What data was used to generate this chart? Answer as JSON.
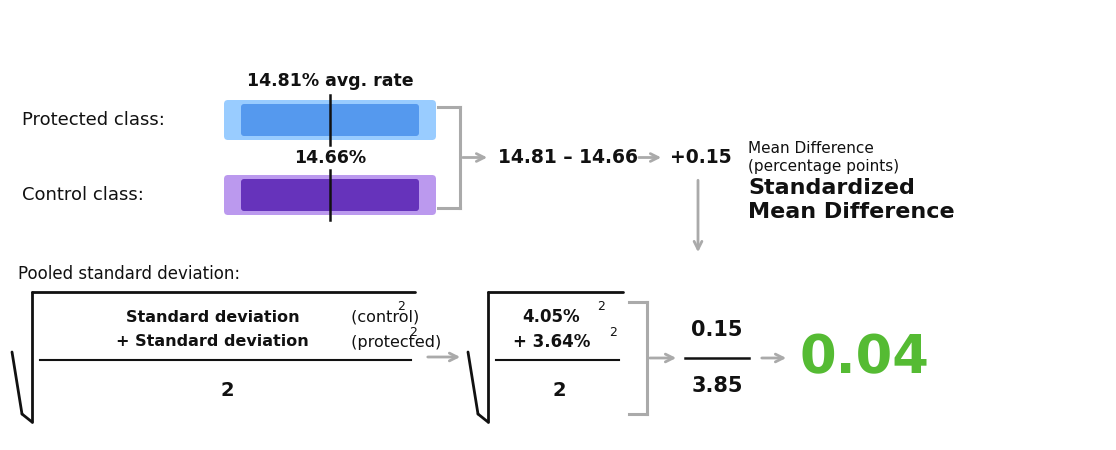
{
  "protected_label": "Protected class:",
  "control_label": "Control class:",
  "protected_rate": "14.81% avg. rate",
  "control_rate": "14.66%",
  "diff_formula": "14.81 – 14.66",
  "diff_result": "+0.15",
  "mean_diff_label": "Mean Difference\n(percentage points)",
  "pooled_label": "Pooled standard deviation:",
  "formula_line1_bold": "Standard deviation",
  "formula_line1_rest": " (control)",
  "formula_line1_super": "2",
  "formula_line2_bold": "+ Standard deviation",
  "formula_line2_rest": " (protected)",
  "formula_line2_super": "2",
  "formula_denom": "2",
  "numeric_line1": "4.05%",
  "numeric_line1_super": "2",
  "numeric_line2": "+ 3.64%",
  "numeric_line2_super": "2",
  "numeric_denom": "2",
  "fraction_num": "0.15",
  "fraction_denom": "3.85",
  "final_result": "0.04",
  "std_mean_diff": "Standardized\nMean Difference",
  "protected_bar_dark": "#5599ee",
  "protected_bar_light": "#99ccff",
  "control_bar_dark": "#6633bb",
  "control_bar_light": "#bb99ee",
  "arrow_color": "#aaaaaa",
  "text_color": "#111111",
  "result_color": "#55bb33",
  "bg_color": "#ffffff"
}
